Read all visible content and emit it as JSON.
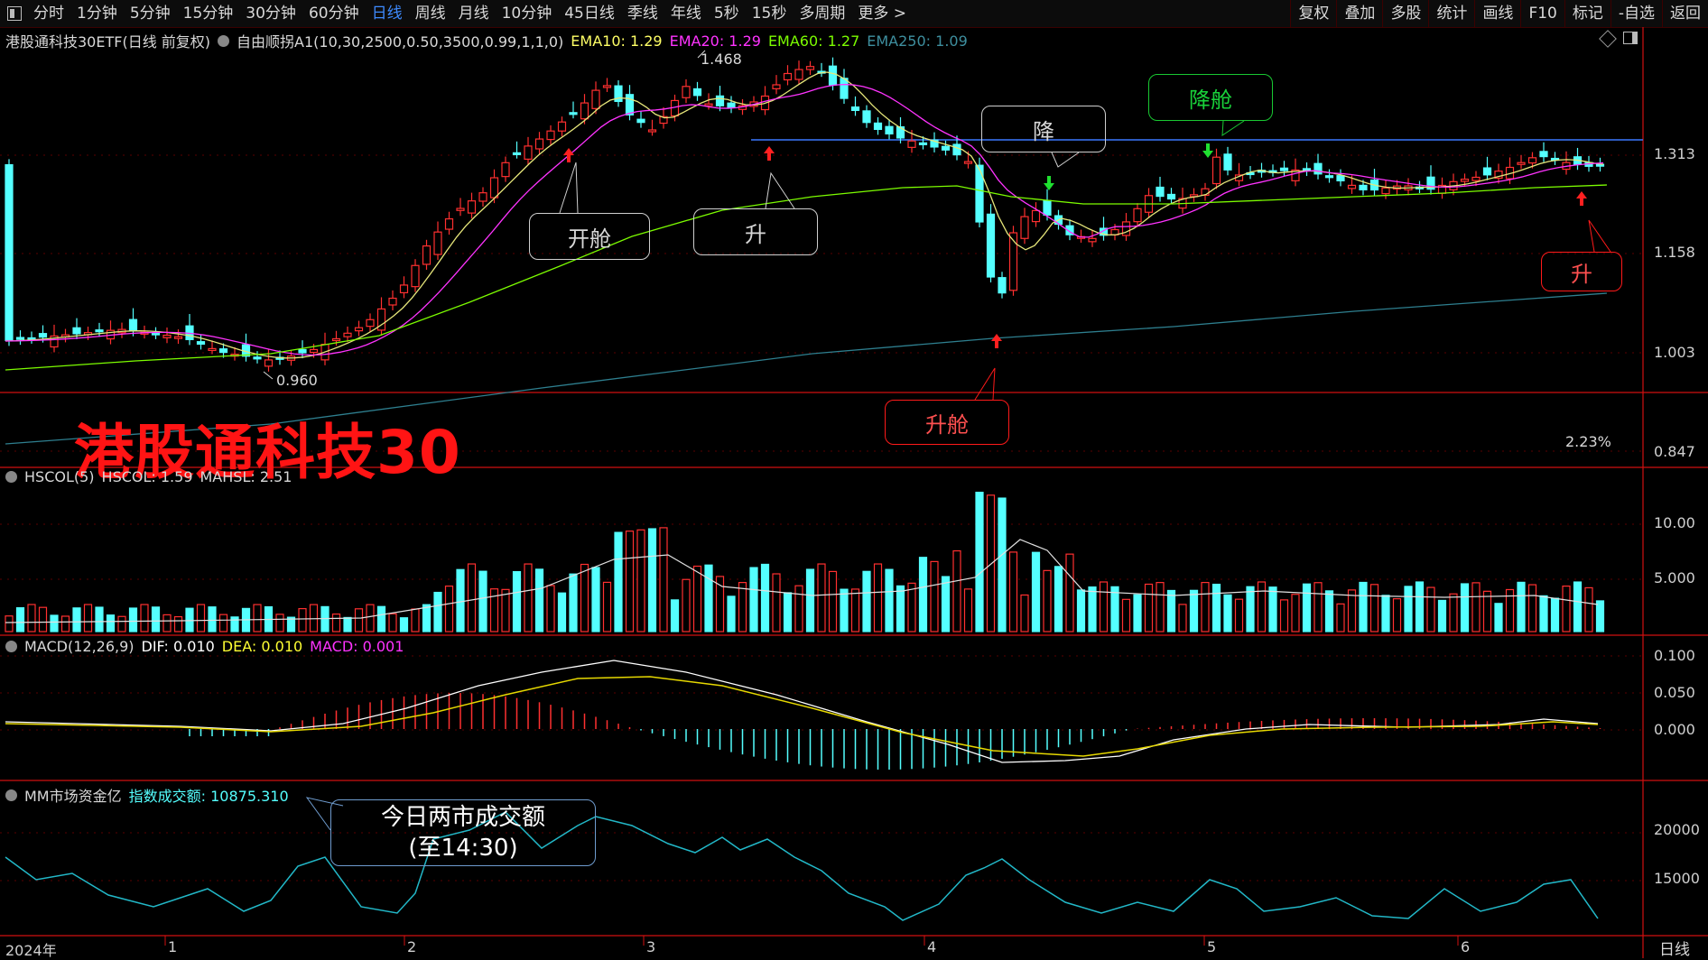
{
  "toolbar": {
    "periods": [
      "分时",
      "1分钟",
      "5分钟",
      "15分钟",
      "30分钟",
      "60分钟",
      "日线",
      "周线",
      "月线",
      "10分钟",
      "45日线",
      "季线",
      "年线",
      "5秒",
      "15秒",
      "多周期",
      "更多 >"
    ],
    "active_period": "日线",
    "right_buttons": [
      "复权",
      "叠加",
      "多股",
      "统计",
      "画线",
      "F10",
      "标记",
      "-自选",
      "返回"
    ]
  },
  "main_chart": {
    "security": "港股通科技30ETF(日线 前复权)",
    "strategy": "自由顺拐A1(10,30,2500,0.50,3500,0.99,1,1,0)",
    "ema": [
      {
        "label": "EMA10: 1.29",
        "color": "#ffff66"
      },
      {
        "label": "EMA20: 1.29",
        "color": "#ff33ff"
      },
      {
        "label": "EMA60: 1.27",
        "color": "#7cfc00"
      },
      {
        "label": "EMA250: 1.09",
        "color": "#2e7f8f"
      }
    ],
    "high_label": "1.468",
    "low_label": "0.960",
    "price_axis": [
      "1.313",
      "1.158",
      "1.003",
      "0.847"
    ],
    "pct_label": "2.23%",
    "big_title": "港股通科技30"
  },
  "callouts": {
    "kaicang": "开舱",
    "sheng1": "升",
    "jiang": "降",
    "jiangcang": "降舱",
    "shengcang": "升舱",
    "sheng2": "升",
    "turnover_line1": "今日两市成交额",
    "turnover_line2": "(至14:30)"
  },
  "volume_panel": {
    "label": "HSCOL(5)",
    "value1": "HSCOL: 1.59",
    "value2": "MAHSL: 2.51",
    "axis": [
      "10.00",
      "5.000"
    ]
  },
  "macd_panel": {
    "label": "MACD(12,26,9)",
    "dif": "DIF: 0.010",
    "dea": "DEA: 0.010",
    "macd": "MACD: 0.001",
    "axis": [
      "0.100",
      "0.050",
      "0.000"
    ]
  },
  "mm_panel": {
    "label": "MM市场资金亿",
    "value": "指数成交额: 10875.310",
    "axis": [
      "20000",
      "15000"
    ]
  },
  "date_axis": [
    "2024年",
    "1",
    "2",
    "3",
    "4",
    "5",
    "6"
  ],
  "period_label": "日线",
  "colors": {
    "up": "#ff3030",
    "down": "#54ffff",
    "grid": "#6a0000"
  }
}
